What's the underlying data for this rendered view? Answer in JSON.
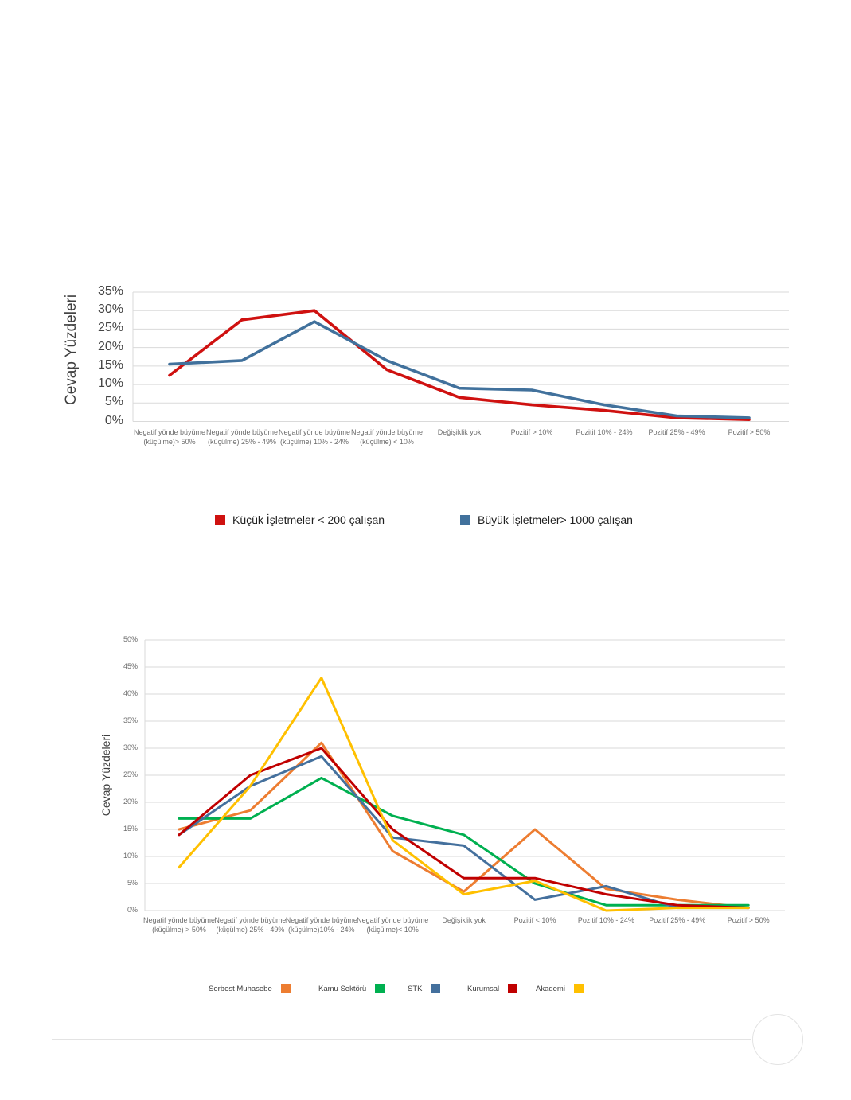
{
  "chart_data": [
    {
      "type": "line",
      "title": "",
      "xlabel": "",
      "ylabel": "Cevap Yüzdeleri",
      "ylim": [
        0,
        35
      ],
      "ytick_step": 5,
      "grid": true,
      "legend_position": "bottom",
      "categories": [
        "Negatif yönde büyüme (küçülme)> 50%",
        "Negatif yönde büyüme (küçülme) 25% - 49%",
        "Negatif yönde büyüme (küçülme) 10% - 24%",
        "Negatif yönde büyüme (küçülme)  <  10%",
        "Değişiklik yok",
        "Pozitif > 10%",
        "Pozitif 10% - 24%",
        "Pozitif 25% - 49%",
        "Pozitif > 50%"
      ],
      "series": [
        {
          "name": "Küçük  İşletmeler < 200 çalışan",
          "color": "#CF1110",
          "values": [
            12.5,
            27.5,
            30,
            14,
            6.5,
            4.5,
            3,
            1,
            0.5
          ]
        },
        {
          "name": "Büyük İşletmeler> 1000 çalışan",
          "color": "#41719C",
          "values": [
            15.5,
            16.5,
            27,
            16.5,
            9,
            8.5,
            4.5,
            1.5,
            1
          ]
        }
      ]
    },
    {
      "type": "line",
      "title": "",
      "xlabel": "",
      "ylabel": "Cevap Yüzdeleri",
      "ylim": [
        0,
        50
      ],
      "ytick_step": 5,
      "grid": true,
      "legend_position": "bottom",
      "categories": [
        "Negatif yönde büyüme (küçülme) > 50%",
        "Negatif yönde büyüme (küçülme) 25% - 49%",
        "Negatif yönde büyüme (küçülme)10% - 24%",
        "Negatif yönde büyüme (küçülme)< 10%",
        "Değişiklik yok",
        "Pozitif < 10%",
        "Pozitif 10% - 24%",
        "Pozitif 25% - 49%",
        "Pozitif > 50%"
      ],
      "series": [
        {
          "name": "Serbest Muhasebe",
          "color": "#ED7D31",
          "values": [
            15,
            18.5,
            31,
            11,
            3.5,
            15,
            4,
            2,
            0.5
          ]
        },
        {
          "name": "Kamu Sektörü",
          "color": "#00B050",
          "values": [
            17,
            17,
            24.5,
            17.5,
            14,
            5,
            1,
            1,
            1
          ]
        },
        {
          "name": "STK",
          "color": "#44709D",
          "values": [
            14,
            23,
            28.5,
            13.5,
            12,
            2,
            4.5,
            0.5,
            0.5
          ]
        },
        {
          "name": "Kurumsal",
          "color": "#C00000",
          "values": [
            14,
            25,
            30,
            15,
            6,
            6,
            3,
            1,
            0.5
          ]
        },
        {
          "name": "Akademi",
          "color": "#FFC000",
          "values": [
            8,
            23,
            43,
            13,
            3,
            5.5,
            0,
            0.5,
            0.5
          ]
        }
      ]
    }
  ]
}
